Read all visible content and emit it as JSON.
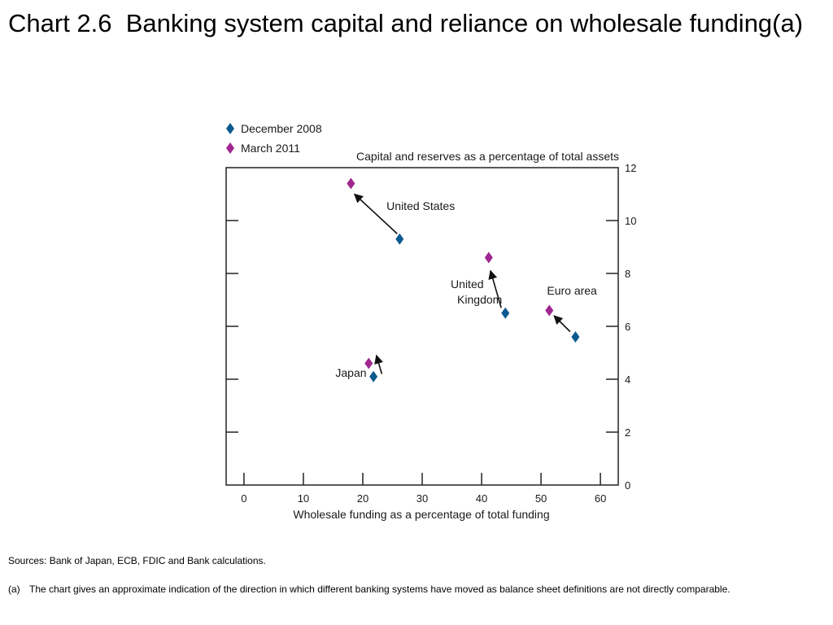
{
  "title": "Chart 2.6  Banking system capital and reliance on wholesale funding(a)",
  "chart_data": {
    "type": "scatter",
    "title": "",
    "xlabel": "Wholesale funding as a percentage of total funding",
    "ylabel": "Capital and reserves as a percentage of total assets",
    "xlim": [
      -3,
      63
    ],
    "ylim": [
      0,
      12
    ],
    "xticks": [
      0,
      10,
      20,
      30,
      40,
      50,
      60
    ],
    "yticks": [
      0,
      2,
      4,
      6,
      8,
      10,
      12
    ],
    "grid": false,
    "legend_position": "top-left",
    "series": [
      {
        "name": "December 2008",
        "color": "#0b5a8f",
        "marker": "diamond",
        "points": [
          {
            "label": "United States",
            "x": 26.2,
            "y": 9.3
          },
          {
            "label": "United Kingdom",
            "x": 44.0,
            "y": 6.5
          },
          {
            "label": "Euro area",
            "x": 55.8,
            "y": 5.6
          },
          {
            "label": "Japan",
            "x": 21.8,
            "y": 4.1
          }
        ]
      },
      {
        "name": "March 2011",
        "color": "#a0278f",
        "marker": "diamond",
        "points": [
          {
            "label": "United States",
            "x": 18.0,
            "y": 11.4
          },
          {
            "label": "United Kingdom",
            "x": 41.2,
            "y": 8.6
          },
          {
            "label": "Euro area",
            "x": 51.4,
            "y": 6.6
          },
          {
            "label": "Japan",
            "x": 21.0,
            "y": 4.6
          }
        ]
      }
    ],
    "arrows": [
      {
        "from": [
          25.8,
          9.5
        ],
        "to": [
          18.6,
          11.0
        ]
      },
      {
        "from": [
          43.3,
          6.7
        ],
        "to": [
          41.5,
          8.1
        ]
      },
      {
        "from": [
          54.9,
          5.8
        ],
        "to": [
          52.2,
          6.4
        ]
      },
      {
        "from": [
          23.2,
          4.2
        ],
        "to": [
          22.3,
          4.9
        ]
      }
    ],
    "annotations": [
      {
        "lines": [
          "United States"
        ],
        "x": 24.0,
        "y": 10.4,
        "anchor": "start"
      },
      {
        "lines": [
          "United",
          "Kingdom"
        ],
        "x": 34.8,
        "y": 7.45,
        "anchor": "start"
      },
      {
        "lines": [
          "Euro area"
        ],
        "x": 51.0,
        "y": 7.2,
        "anchor": "start"
      },
      {
        "lines": [
          "Japan"
        ],
        "x": 15.4,
        "y": 4.1,
        "anchor": "start"
      }
    ]
  },
  "sources": "Sources:  Bank of Japan, ECB, FDIC and Bank calculations.",
  "note": {
    "marker": "(a)",
    "text": "The chart gives an approximate indication of the direction in which different banking systems have moved as balance sheet definitions are not directly comparable."
  }
}
